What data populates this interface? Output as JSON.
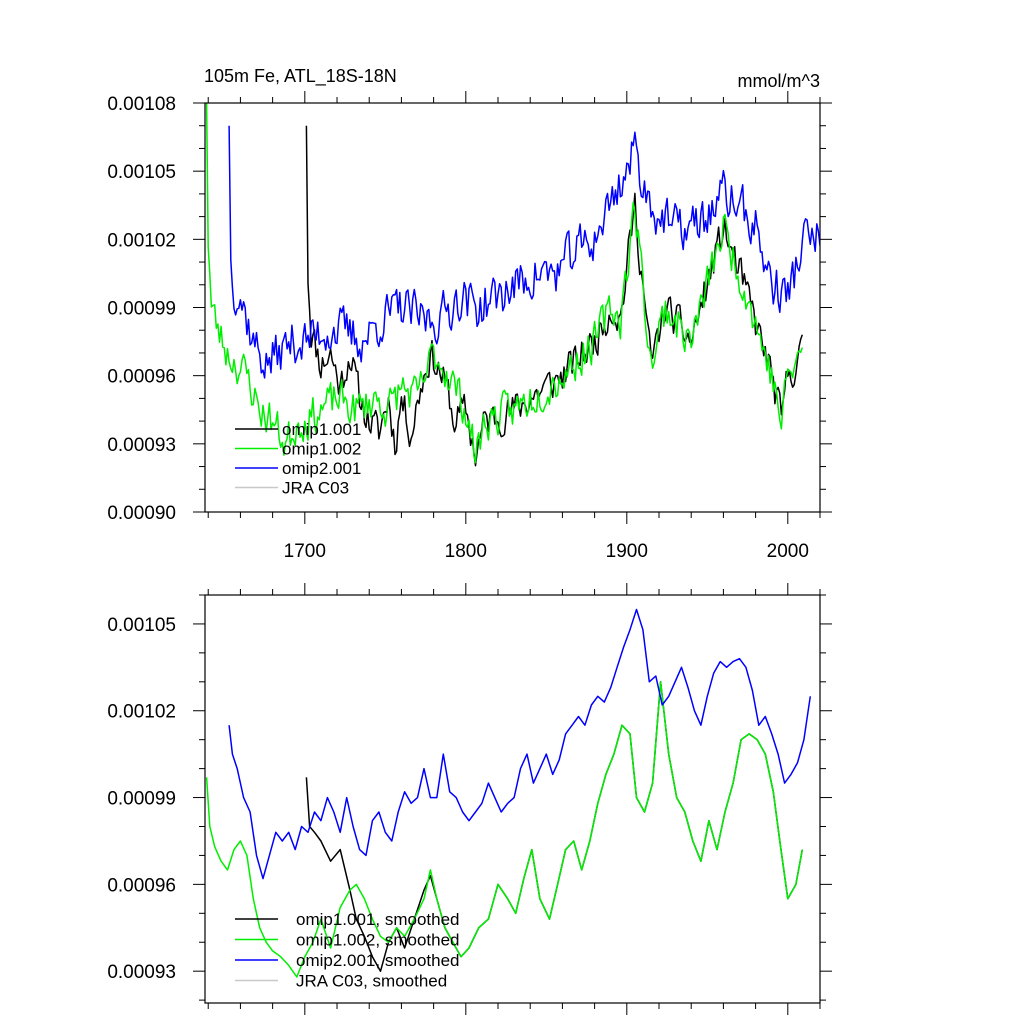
{
  "chart_data": [
    {
      "type": "line",
      "title_left": "105m Fe, ATL_18S-18N",
      "title_right": "mmol/m^3",
      "xlim": [
        1638,
        2020
      ],
      "ylim": [
        0.0009,
        0.00108
      ],
      "xticks": [
        1700,
        1800,
        1900,
        2000
      ],
      "xtick_labels": [
        "1700",
        "1800",
        "1900",
        "2000"
      ],
      "yticks": [
        0.0009,
        0.00093,
        0.00096,
        0.00099,
        0.00102,
        0.00105,
        0.00108
      ],
      "ytick_labels": [
        "0.00090",
        "0.00093",
        "0.00096",
        "0.00099",
        "0.00102",
        "0.00105",
        "0.00108"
      ],
      "legend": [
        "omip1.001",
        "omip1.002",
        "omip2.001",
        "JRA C03"
      ],
      "series": [
        {
          "name": "omip1.001",
          "color": "#000000",
          "seed": 11,
          "amp": 1.1e-05,
          "x": [
            1701,
            1702,
            1704,
            1710,
            1716,
            1722,
            1728,
            1734,
            1740,
            1746,
            1752,
            1756,
            1760,
            1766,
            1772,
            1778,
            1785,
            1790,
            1792,
            1800,
            1806,
            1812,
            1830,
            1850,
            1860,
            1880,
            1890,
            1896,
            1905,
            1915,
            1924,
            1940,
            1960,
            1975,
            1990,
            1996,
            2000,
            2009
          ],
          "y": [
            0.00107,
            0.001005,
            0.00098,
            0.000965,
            0.00097,
            0.000955,
            0.00097,
            0.00095,
            0.00094,
            0.000935,
            0.00095,
            0.00093,
            0.00095,
            0.000935,
            0.000955,
            0.00097,
            0.00096,
            0.00095,
            0.00094,
            0.000945,
            0.000925,
            0.00094,
            0.000945,
            0.000955,
            0.00096,
            0.000975,
            0.00099,
            0.000985,
            0.001035,
            0.000965,
            0.00099,
            0.000975,
            0.001025,
            0.000995,
            0.00096,
            0.00094,
            0.00096,
            0.00097
          ]
        },
        {
          "name": "omip1.002",
          "color": "#00ee00",
          "seed": 23,
          "amp": 1.2e-05,
          "x": [
            1639,
            1640,
            1642,
            1646,
            1652,
            1658,
            1664,
            1672,
            1680,
            1688,
            1696,
            1700,
            1710,
            1720,
            1732,
            1744,
            1752,
            1760,
            1770,
            1780,
            1790,
            1800,
            1806,
            1812,
            1830,
            1850,
            1860,
            1880,
            1890,
            1896,
            1905,
            1915,
            1924,
            1940,
            1960,
            1975,
            1990,
            1996,
            2000,
            2009
          ],
          "y": [
            0.00108,
            0.00102,
            0.00099,
            0.00098,
            0.00097,
            0.000965,
            0.00096,
            0.000945,
            0.00094,
            0.00093,
            0.00094,
            0.00094,
            0.000945,
            0.00095,
            0.000945,
            0.00095,
            0.000945,
            0.000955,
            0.00095,
            0.00097,
            0.00096,
            0.000945,
            0.000925,
            0.00094,
            0.000945,
            0.000955,
            0.00096,
            0.000975,
            0.00099,
            0.000985,
            0.001035,
            0.000965,
            0.00099,
            0.000975,
            0.001025,
            0.000995,
            0.00096,
            0.00094,
            0.00096,
            0.00097
          ]
        },
        {
          "name": "omip2.001",
          "color": "#0000ff",
          "seed": 37,
          "amp": 1.4e-05,
          "x": [
            1653,
            1654,
            1656,
            1660,
            1668,
            1676,
            1684,
            1692,
            1700,
            1712,
            1724,
            1736,
            1748,
            1760,
            1772,
            1784,
            1796,
            1808,
            1820,
            1832,
            1844,
            1856,
            1868,
            1880,
            1892,
            1900,
            1905,
            1912,
            1920,
            1930,
            1940,
            1950,
            1960,
            1970,
            1980,
            1990,
            2000,
            2010,
            2020
          ],
          "y": [
            0.00107,
            0.00101,
            0.001,
            0.000995,
            0.000975,
            0.000965,
            0.00097,
            0.000975,
            0.000975,
            0.00098,
            0.00098,
            0.000975,
            0.000985,
            0.00099,
            0.000985,
            0.000985,
            0.000995,
            0.00099,
            0.000995,
            0.001,
            0.001005,
            0.001005,
            0.001015,
            0.00102,
            0.00104,
            0.00105,
            0.00106,
            0.00104,
            0.00103,
            0.001025,
            0.001025,
            0.00103,
            0.00104,
            0.001035,
            0.001025,
            0.001,
            0.000995,
            0.00102,
            0.00102
          ]
        },
        {
          "name": "JRA C03",
          "color": "#c8c8c8",
          "seed": 0,
          "amp": 0,
          "x": [],
          "y": []
        }
      ]
    },
    {
      "type": "line",
      "xlim": [
        1638,
        2020
      ],
      "ylim": [
        0.000919,
        0.00106
      ],
      "xticks": [
        1700,
        1800,
        1900,
        2000
      ],
      "yticks": [
        0.00093,
        0.00096,
        0.00099,
        0.00102,
        0.00105
      ],
      "ytick_labels": [
        "0.00093",
        "0.00096",
        "0.00099",
        "0.00102",
        "0.00105"
      ],
      "legend": [
        "omip1.001, smoothed",
        "omip1.002, smoothed",
        "omip2.001, smoothed",
        "JRA C03, smoothed"
      ],
      "series": [
        {
          "name": "omip1.001, smoothed",
          "color": "#000000",
          "seed": 0,
          "amp": 0,
          "x": [
            1701,
            1703,
            1706,
            1710,
            1716,
            1722,
            1728,
            1732,
            1737,
            1742,
            1747,
            1752,
            1757,
            1762,
            1768,
            1774,
            1778,
            1782,
            1787,
            1792,
            1797,
            1802,
            1808,
            1814,
            1820,
            1826,
            1831,
            1836,
            1841,
            1846,
            1852,
            1857,
            1862,
            1867,
            1872,
            1877,
            1882,
            1887,
            1892,
            1897,
            1902,
            1906,
            1911,
            1916,
            1921,
            1926,
            1931,
            1936,
            1941,
            1946,
            1951,
            1956,
            1961,
            1966,
            1971,
            1976,
            1981,
            1986,
            1991,
            1995,
            2000,
            2005,
            2009
          ],
          "y": [
            0.000997,
            0.00098,
            0.000978,
            0.000975,
            0.000968,
            0.000972,
            0.000958,
            0.000948,
            0.000942,
            0.000935,
            0.00093,
            0.00094,
            0.000945,
            0.000938,
            0.000948,
            0.000958,
            0.000963,
            0.000955,
            0.000945,
            0.00094,
            0.000935,
            0.000938,
            0.000945,
            0.000948,
            0.00096,
            0.000955,
            0.00095,
            0.000962,
            0.000972,
            0.000955,
            0.000948,
            0.00096,
            0.000972,
            0.000975,
            0.000965,
            0.000975,
            0.000988,
            0.000998,
            0.001005,
            0.001015,
            0.001012,
            0.00099,
            0.000985,
            0.000995,
            0.00103,
            0.001005,
            0.00099,
            0.000985,
            0.000975,
            0.000968,
            0.000982,
            0.000972,
            0.000985,
            0.000995,
            0.00101,
            0.001012,
            0.00101,
            0.001005,
            0.000992,
            0.000975,
            0.000955,
            0.00096,
            0.000972
          ]
        },
        {
          "name": "omip1.002, smoothed",
          "color": "#00ee00",
          "seed": 0,
          "amp": 0,
          "x": [
            1639,
            1641,
            1644,
            1648,
            1652,
            1656,
            1660,
            1664,
            1668,
            1672,
            1676,
            1680,
            1685,
            1690,
            1695,
            1700,
            1705,
            1710,
            1716,
            1722,
            1728,
            1732,
            1737,
            1742,
            1747,
            1752,
            1757,
            1762,
            1768,
            1774,
            1778,
            1782,
            1787,
            1792,
            1797,
            1802,
            1808,
            1814,
            1820,
            1826,
            1831,
            1836,
            1841,
            1846,
            1852,
            1857,
            1862,
            1867,
            1872,
            1877,
            1882,
            1887,
            1892,
            1897,
            1902,
            1906,
            1911,
            1916,
            1921,
            1926,
            1931,
            1936,
            1941,
            1946,
            1951,
            1956,
            1961,
            1966,
            1971,
            1976,
            1981,
            1986,
            1991,
            1995,
            2000,
            2005,
            2009
          ],
          "y": [
            0.000997,
            0.00098,
            0.000973,
            0.000968,
            0.000965,
            0.000972,
            0.000975,
            0.00097,
            0.000955,
            0.000945,
            0.00094,
            0.000937,
            0.000935,
            0.000932,
            0.000928,
            0.000935,
            0.00094,
            0.000948,
            0.000938,
            0.000952,
            0.000958,
            0.00096,
            0.000955,
            0.000948,
            0.000942,
            0.00094,
            0.000945,
            0.000942,
            0.000948,
            0.000955,
            0.000965,
            0.000955,
            0.000945,
            0.00094,
            0.000935,
            0.000938,
            0.000945,
            0.000948,
            0.00096,
            0.000955,
            0.00095,
            0.000962,
            0.000972,
            0.000955,
            0.000948,
            0.00096,
            0.000972,
            0.000975,
            0.000965,
            0.000975,
            0.000988,
            0.000998,
            0.001005,
            0.001015,
            0.001012,
            0.00099,
            0.000985,
            0.000995,
            0.00103,
            0.001005,
            0.00099,
            0.000985,
            0.000975,
            0.000968,
            0.000982,
            0.000972,
            0.000985,
            0.000995,
            0.00101,
            0.001012,
            0.00101,
            0.001005,
            0.000992,
            0.000975,
            0.000955,
            0.00096,
            0.000972
          ]
        },
        {
          "name": "omip2.001, smoothed",
          "color": "#0000ff",
          "seed": 0,
          "amp": 0,
          "x": [
            1653,
            1655,
            1658,
            1662,
            1666,
            1670,
            1674,
            1678,
            1682,
            1686,
            1690,
            1694,
            1698,
            1702,
            1706,
            1710,
            1714,
            1718,
            1722,
            1726,
            1730,
            1734,
            1738,
            1742,
            1746,
            1750,
            1754,
            1758,
            1762,
            1766,
            1770,
            1774,
            1778,
            1782,
            1786,
            1790,
            1794,
            1798,
            1802,
            1806,
            1810,
            1814,
            1818,
            1822,
            1826,
            1830,
            1834,
            1838,
            1842,
            1846,
            1850,
            1854,
            1858,
            1862,
            1866,
            1870,
            1874,
            1878,
            1882,
            1886,
            1890,
            1894,
            1898,
            1902,
            1906,
            1910,
            1914,
            1918,
            1922,
            1926,
            1930,
            1934,
            1938,
            1942,
            1946,
            1950,
            1954,
            1958,
            1962,
            1966,
            1970,
            1974,
            1978,
            1982,
            1986,
            1990,
            1994,
            1998,
            2002,
            2006,
            2010,
            2014
          ],
          "y": [
            0.001015,
            0.001005,
            0.001,
            0.00099,
            0.000985,
            0.00097,
            0.000962,
            0.00097,
            0.000978,
            0.000975,
            0.000978,
            0.000972,
            0.00098,
            0.000978,
            0.000985,
            0.000982,
            0.00099,
            0.000985,
            0.000978,
            0.00099,
            0.00098,
            0.000972,
            0.00097,
            0.000982,
            0.000985,
            0.000978,
            0.000975,
            0.000985,
            0.000992,
            0.000988,
            0.00099,
            0.001,
            0.00099,
            0.00099,
            0.001005,
            0.000992,
            0.00099,
            0.000985,
            0.000982,
            0.000985,
            0.000988,
            0.000995,
            0.00099,
            0.000985,
            0.000988,
            0.00099,
            0.001,
            0.001005,
            0.000995,
            0.001,
            0.001005,
            0.000998,
            0.001003,
            0.001012,
            0.001015,
            0.001018,
            0.001015,
            0.001022,
            0.001025,
            0.001023,
            0.001028,
            0.001035,
            0.001042,
            0.001048,
            0.001055,
            0.001048,
            0.00103,
            0.001032,
            0.001022,
            0.001025,
            0.00103,
            0.001035,
            0.001028,
            0.00102,
            0.001015,
            0.001025,
            0.001033,
            0.001037,
            0.001035,
            0.001037,
            0.001038,
            0.001035,
            0.001027,
            0.001015,
            0.001018,
            0.001012,
            0.001005,
            0.000995,
            0.000998,
            0.001002,
            0.00101,
            0.001025
          ]
        },
        {
          "name": "JRA C03, smoothed",
          "color": "#c8c8c8",
          "seed": 0,
          "amp": 0,
          "x": [],
          "y": []
        }
      ]
    }
  ]
}
